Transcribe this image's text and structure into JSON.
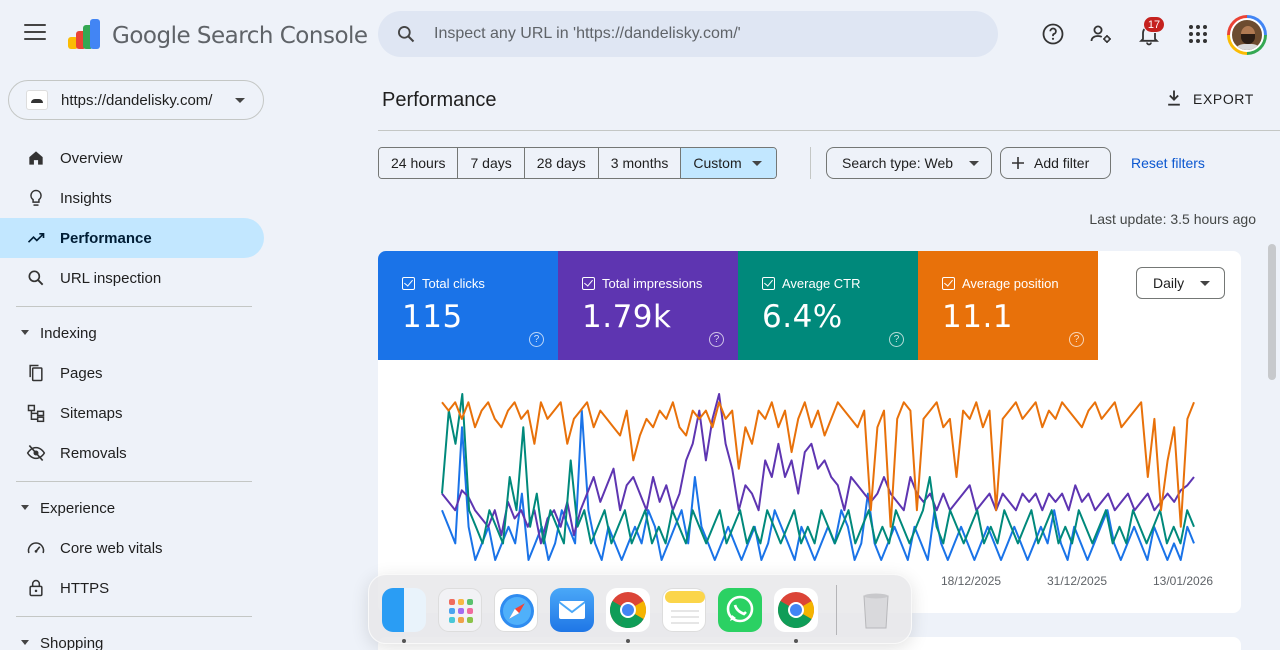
{
  "header": {
    "app_title": "Google Search Console",
    "search_placeholder": "Inspect any URL in 'https://dandelisky.com/'",
    "notification_count": "17"
  },
  "sidebar": {
    "property": "https://dandelisky.com/",
    "items": [
      {
        "label": "Overview",
        "icon": "home-icon"
      },
      {
        "label": "Insights",
        "icon": "lightbulb-icon"
      },
      {
        "label": "Performance",
        "icon": "trending-icon",
        "active": true
      },
      {
        "label": "URL inspection",
        "icon": "search-icon"
      }
    ],
    "sections": [
      {
        "label": "Indexing",
        "items": [
          {
            "label": "Pages",
            "icon": "pages-icon"
          },
          {
            "label": "Sitemaps",
            "icon": "sitemap-icon"
          },
          {
            "label": "Removals",
            "icon": "eye-off-icon"
          }
        ]
      },
      {
        "label": "Experience",
        "items": [
          {
            "label": "Core web vitals",
            "icon": "speed-icon"
          },
          {
            "label": "HTTPS",
            "icon": "lock-icon"
          }
        ]
      },
      {
        "label": "Shopping",
        "items": []
      }
    ]
  },
  "main": {
    "title": "Performance",
    "export_label": "EXPORT",
    "ranges": [
      "24 hours",
      "7 days",
      "28 days",
      "3 months",
      "Custom"
    ],
    "selected_range": "Custom",
    "search_type": "Search type: Web",
    "add_filter": "Add filter",
    "reset_filters": "Reset filters",
    "last_update": "Last update: 3.5 hours ago",
    "granularity": "Daily",
    "metrics": [
      {
        "label": "Total clicks",
        "value": "115",
        "color": "#1a73e8"
      },
      {
        "label": "Total impressions",
        "value": "1.79k",
        "color": "#5e35b1"
      },
      {
        "label": "Average CTR",
        "value": "6.4%",
        "color": "#00897b"
      },
      {
        "label": "Average position",
        "value": "11.1",
        "color": "#e8710a"
      }
    ]
  },
  "chart_data": {
    "type": "line",
    "x_ticks": [
      "18/12/2025",
      "31/12/2025",
      "13/01/2026"
    ],
    "series": [
      {
        "name": "Total clicks",
        "color": "#1a73e8",
        "values": [
          0.3,
          0.2,
          0.1,
          0.8,
          0.2,
          0,
          0.1,
          0.2,
          0,
          0.1,
          0.2,
          0.1,
          0.4,
          0,
          0.1,
          0.2,
          0,
          0.1,
          0.3,
          0.2,
          0.1,
          0.9,
          0.3,
          0.1,
          0,
          0.2,
          0.1,
          0,
          0.1,
          0.2,
          0.1,
          0.3,
          0.2,
          0,
          0.1,
          0.2,
          0.3,
          0.1,
          0.5,
          0.2,
          0.1,
          0,
          0.1,
          0.2,
          0.1,
          0,
          0.1,
          0.2,
          0,
          0.1,
          0.3,
          0.2,
          0.1,
          0,
          0.2,
          0.1,
          0,
          0.1,
          0.2,
          0.1,
          0.3,
          0.2,
          0,
          0.1,
          0.4,
          0.1,
          0,
          0.1,
          0.2,
          0.1,
          0,
          0.2,
          0.1,
          0,
          0.3,
          0.1,
          0,
          0.1,
          0.2,
          0.1,
          0,
          0.1,
          0.2,
          0.1,
          0,
          0.1,
          0.2,
          0.1,
          0,
          0.1,
          0.2,
          0.1,
          0.3,
          0.1,
          0,
          0.2,
          0.1,
          0,
          0.1,
          0.2,
          0.3,
          0.1,
          0,
          0.1,
          0.2,
          0.1,
          0,
          0.2,
          0.1,
          0,
          0.1,
          0,
          0.2,
          0.1
        ]
      },
      {
        "name": "Total impressions",
        "color": "#5e35b1",
        "values": [
          0.4,
          0.35,
          0.3,
          0.42,
          0.38,
          0.3,
          0.25,
          0.2,
          0.3,
          0.15,
          0.35,
          0.25,
          0.3,
          0.2,
          0.3,
          0.1,
          0.25,
          0.3,
          0.2,
          0.35,
          0.15,
          0.3,
          0.4,
          0.5,
          0.35,
          0.45,
          0.55,
          0.3,
          0.45,
          0.5,
          0.4,
          0.3,
          0.5,
          0.35,
          0.45,
          0.3,
          0.4,
          0.6,
          0.7,
          0.9,
          0.6,
          0.85,
          1.0,
          0.7,
          0.55,
          0.3,
          0.45,
          0.4,
          0.3,
          0.6,
          0.5,
          0.7,
          0.5,
          0.6,
          0.4,
          0.65,
          0.7,
          0.55,
          0.6,
          0.5,
          0.45,
          0.3,
          0.5,
          0.45,
          0.4,
          0.35,
          0.4,
          0.5,
          0.4,
          0.35,
          0.3,
          0.5,
          0.4,
          0.35,
          0.4,
          0.3,
          0.4,
          0.3,
          0.35,
          0.4,
          0.45,
          0.3,
          0.35,
          0.4,
          0.3,
          0.4,
          0.35,
          0.3,
          0.4,
          0.35,
          0.4,
          0.3,
          0.4,
          0.35,
          0.4,
          0.3,
          0.45,
          0.35,
          0.4,
          0.3,
          0.35,
          0.4,
          0.3,
          0.35,
          0.4,
          0.3,
          0.35,
          0.4,
          0.3,
          0.35,
          0.4,
          0.35,
          0.42,
          0.45,
          0.5
        ]
      },
      {
        "name": "Average CTR",
        "color": "#00897b",
        "values": [
          0.4,
          0.9,
          0.7,
          1.0,
          0.3,
          0.2,
          0.1,
          0.3,
          0.2,
          0.1,
          0.5,
          0.3,
          0.8,
          0.2,
          0.4,
          0.1,
          0.3,
          0.2,
          0.1,
          0.6,
          0.2,
          0.3,
          0.1,
          0.2,
          0.3,
          0.1,
          0.2,
          0.3,
          0.1,
          0.2,
          0.3,
          0.1,
          0.2,
          0.1,
          0.3,
          0.2,
          0.1,
          0.3,
          0.2,
          0.1,
          0.2,
          0.3,
          0.1,
          0.2,
          0.3,
          0.1,
          0.2,
          0.1,
          0.3,
          0.2,
          0.1,
          0.2,
          0.3,
          0.1,
          0.2,
          0.1,
          0.3,
          0.2,
          0.1,
          0.2,
          0.3,
          0.1,
          0.2,
          0.3,
          0.1,
          0.2,
          0.1,
          0.3,
          0.2,
          0.1,
          0.2,
          0.3,
          0.5,
          0.2,
          0.1,
          0.3,
          0.2,
          0.1,
          0.2,
          0.3,
          0.1,
          0.2,
          0.1,
          0.3,
          0.2,
          0.1,
          0.2,
          0.3,
          0.1,
          0.2,
          0.3,
          0.1,
          0.2,
          0.1,
          0.3,
          0.2,
          0.1,
          0.2,
          0.3,
          0.1,
          0.2,
          0.1,
          0.3,
          0.2,
          0.1,
          0.2,
          0.3,
          0.1,
          0.2,
          0.1,
          0.3,
          0.2
        ]
      },
      {
        "name": "Average position",
        "color": "#e8710a",
        "values": [
          0.95,
          0.9,
          0.95,
          0.85,
          0.95,
          0.8,
          0.9,
          0.95,
          0.85,
          0.8,
          0.9,
          0.95,
          0.85,
          0.9,
          0.7,
          0.95,
          0.85,
          0.9,
          0.95,
          0.7,
          0.85,
          0.9,
          0.95,
          0.8,
          0.9,
          0.85,
          0.8,
          0.75,
          0.9,
          0.6,
          0.75,
          0.85,
          0.8,
          0.9,
          0.85,
          0.95,
          0.8,
          0.75,
          0.9,
          0.85,
          0.9,
          0.8,
          0.95,
          0.85,
          0.9,
          0.55,
          0.8,
          0.7,
          0.9,
          0.85,
          0.95,
          0.8,
          0.9,
          0.65,
          0.85,
          0.95,
          0.8,
          0.9,
          0.75,
          0.85,
          0.95,
          0.9,
          0.85,
          0.8,
          0.9,
          0.3,
          0.8,
          0.9,
          0.2,
          0.85,
          0.95,
          0.9,
          0.3,
          0.85,
          0.9,
          0.95,
          0.8,
          0.85,
          0.5,
          0.9,
          0.85,
          0.95,
          0.8,
          0.9,
          0.3,
          0.85,
          0.9,
          0.95,
          0.85,
          0.9,
          0.95,
          0.8,
          0.9,
          0.85,
          0.95,
          0.9,
          0.85,
          0.8,
          0.9,
          0.95,
          0.85,
          0.9,
          0.95,
          0.8,
          0.85,
          0.9,
          0.95,
          0.5,
          0.85,
          0.3,
          0.6,
          0.8,
          0.2,
          0.85,
          0.95
        ]
      }
    ]
  },
  "dock": {
    "apps": [
      {
        "name": "finder-icon",
        "color": "#1e90ff"
      },
      {
        "name": "launchpad-icon",
        "color": "#f2f2f5"
      },
      {
        "name": "safari-icon",
        "color": "#ffffff"
      },
      {
        "name": "mail-icon",
        "color": "#3b8ff0"
      },
      {
        "name": "chrome-icon",
        "color": "#ffffff"
      },
      {
        "name": "notes-icon",
        "color": "#fbe38b"
      },
      {
        "name": "whatsapp-icon",
        "color": "#2bd163"
      },
      {
        "name": "chrome-icon",
        "color": "#ffffff"
      },
      {
        "name": "trash-icon",
        "color": "#dcdcdf"
      }
    ]
  }
}
